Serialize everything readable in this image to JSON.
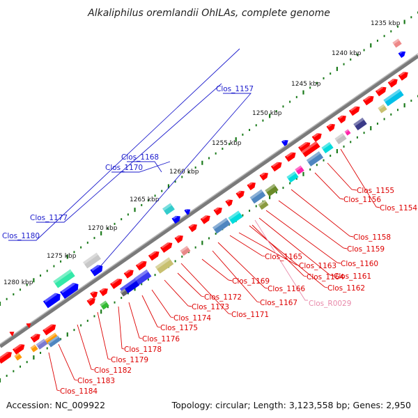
{
  "title": "Alkaliphilus oremlandii OhILAs, complete genome",
  "footer": {
    "accession": "Accession: NC_009922",
    "stats": "Topology: circular; Length: 3,123,558 bp; Genes: 2,950"
  },
  "ruler_labels": [
    "1235 kbp",
    "1240 kbp",
    "1245 kbp",
    "1250 kbp",
    "1255 kbp",
    "1260 kbp",
    "1265 kbp",
    "1270 kbp",
    "1275 kbp",
    "1280 kbp"
  ],
  "gene_labels": [
    "Clos_1155",
    "Clos_1156",
    "Clos_1154",
    "Clos_1158",
    "Clos_1159",
    "Clos_1160",
    "Clos_1161",
    "Clos_1162",
    "Clos_1163",
    "Clos_1164",
    "Clos_1165",
    "Clos_1166",
    "Clos_1167",
    "Clos_1169",
    "Clos_1171",
    "Clos_1172",
    "Clos_1173",
    "Clos_1174",
    "Clos_1175",
    "Clos_1176",
    "Clos_1178",
    "Clos_1179",
    "Clos_1182",
    "Clos_1183",
    "Clos_1184",
    "Clos_R0029"
  ],
  "upper_labels": [
    "Clos_1157",
    "Clos_1168",
    "Clos_1170",
    "Clos_1177",
    "Clos_1180"
  ],
  "colors": {
    "cds_red": "#ff0000",
    "rrna_blue": "#0000ff",
    "label_red": "#dd0000",
    "label_blue": "#1a1acc",
    "label_pink": "#e88aaa",
    "backbone": "#7a7a7a",
    "tick_green": "#1a7a1a"
  }
}
